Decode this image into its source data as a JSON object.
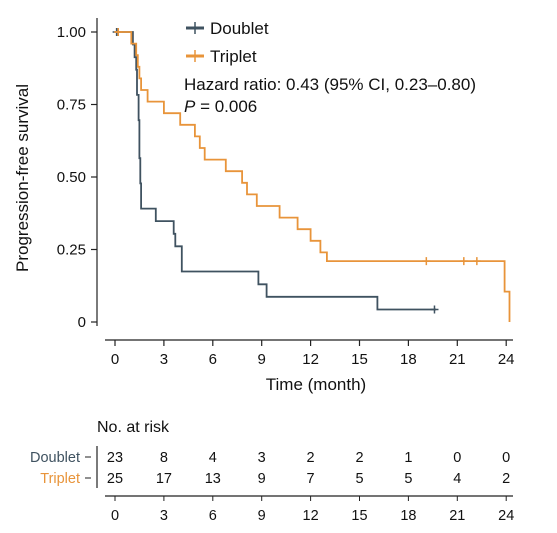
{
  "chart_data": {
    "type": "line",
    "subtype": "kaplan-meier",
    "xlabel": "Time (month)",
    "ylabel": "Progression-free survival",
    "xlim": [
      0,
      24.5
    ],
    "ylim": [
      0,
      1.0
    ],
    "x_ticks": [
      "0",
      "3",
      "6",
      "9",
      "12",
      "15",
      "18",
      "21",
      "24"
    ],
    "y_ticks": [
      {
        "value": 1.0,
        "label": "1.00"
      },
      {
        "value": 0.75,
        "label": "0.75"
      },
      {
        "value": 0.5,
        "label": "0.50"
      },
      {
        "value": 0.25,
        "label": "0.25"
      },
      {
        "value": 0.0,
        "label": "0"
      }
    ],
    "annotations": {
      "hazard_ratio": "Hazard ratio: 0.43 (95% CI, 0.23–0.80)",
      "p_label": "P",
      "p_value": " = 0.006"
    },
    "legend_position": "top-center",
    "series": [
      {
        "name": "Doublet",
        "color": "#3f5260",
        "points": [
          [
            0,
            1.0
          ],
          [
            1.1,
            1.0
          ],
          [
            1.1,
            0.957
          ],
          [
            1.2,
            0.957
          ],
          [
            1.2,
            0.913
          ],
          [
            1.3,
            0.913
          ],
          [
            1.3,
            0.87
          ],
          [
            1.35,
            0.87
          ],
          [
            1.35,
            0.783
          ],
          [
            1.45,
            0.783
          ],
          [
            1.45,
            0.696
          ],
          [
            1.5,
            0.696
          ],
          [
            1.5,
            0.565
          ],
          [
            1.55,
            0.565
          ],
          [
            1.55,
            0.478
          ],
          [
            1.6,
            0.478
          ],
          [
            1.6,
            0.391
          ],
          [
            2.5,
            0.391
          ],
          [
            2.5,
            0.348
          ],
          [
            3.6,
            0.348
          ],
          [
            3.6,
            0.304
          ],
          [
            3.7,
            0.304
          ],
          [
            3.7,
            0.261
          ],
          [
            4.1,
            0.261
          ],
          [
            4.1,
            0.174
          ],
          [
            8.8,
            0.174
          ],
          [
            8.8,
            0.13
          ],
          [
            9.3,
            0.13
          ],
          [
            9.3,
            0.087
          ],
          [
            16.1,
            0.087
          ],
          [
            16.1,
            0.043
          ],
          [
            19.7,
            0.043
          ]
        ],
        "censored": [
          [
            0.1,
            1.0
          ],
          [
            19.6,
            0.043
          ]
        ]
      },
      {
        "name": "Triplet",
        "color": "#e8943a",
        "points": [
          [
            0,
            1.0
          ],
          [
            1.0,
            1.0
          ],
          [
            1.0,
            0.96
          ],
          [
            1.3,
            0.96
          ],
          [
            1.3,
            0.92
          ],
          [
            1.4,
            0.92
          ],
          [
            1.4,
            0.88
          ],
          [
            1.5,
            0.88
          ],
          [
            1.5,
            0.84
          ],
          [
            1.6,
            0.84
          ],
          [
            1.6,
            0.8
          ],
          [
            2.0,
            0.8
          ],
          [
            2.0,
            0.76
          ],
          [
            3.0,
            0.76
          ],
          [
            3.0,
            0.72
          ],
          [
            4.0,
            0.72
          ],
          [
            4.0,
            0.68
          ],
          [
            4.9,
            0.68
          ],
          [
            4.9,
            0.64
          ],
          [
            5.2,
            0.64
          ],
          [
            5.2,
            0.6
          ],
          [
            5.5,
            0.6
          ],
          [
            5.5,
            0.56
          ],
          [
            6.8,
            0.56
          ],
          [
            6.8,
            0.52
          ],
          [
            7.8,
            0.52
          ],
          [
            7.8,
            0.48
          ],
          [
            8.1,
            0.48
          ],
          [
            8.1,
            0.44
          ],
          [
            8.7,
            0.44
          ],
          [
            8.7,
            0.4
          ],
          [
            10.1,
            0.4
          ],
          [
            10.1,
            0.36
          ],
          [
            11.2,
            0.36
          ],
          [
            11.2,
            0.32
          ],
          [
            12.0,
            0.32
          ],
          [
            12.0,
            0.28
          ],
          [
            12.6,
            0.28
          ],
          [
            12.6,
            0.24
          ],
          [
            13.0,
            0.24
          ],
          [
            13.0,
            0.21
          ],
          [
            23.9,
            0.21
          ],
          [
            23.9,
            0.105
          ],
          [
            24.2,
            0.105
          ],
          [
            24.2,
            0.0
          ]
        ],
        "censored": [
          [
            0.2,
            1.0
          ],
          [
            19.1,
            0.21
          ],
          [
            21.4,
            0.21
          ],
          [
            22.2,
            0.21
          ]
        ]
      }
    ],
    "risk_table": {
      "title": "No. at risk",
      "times": [
        "0",
        "3",
        "6",
        "9",
        "12",
        "15",
        "18",
        "21",
        "24"
      ],
      "rows": [
        {
          "label": "Doublet",
          "color": "#3f5260",
          "values": [
            "23",
            "8",
            "4",
            "3",
            "2",
            "2",
            "1",
            "0",
            "0"
          ]
        },
        {
          "label": "Triplet",
          "color": "#e8943a",
          "values": [
            "25",
            "17",
            "13",
            "9",
            "7",
            "5",
            "5",
            "4",
            "2"
          ]
        }
      ]
    }
  }
}
